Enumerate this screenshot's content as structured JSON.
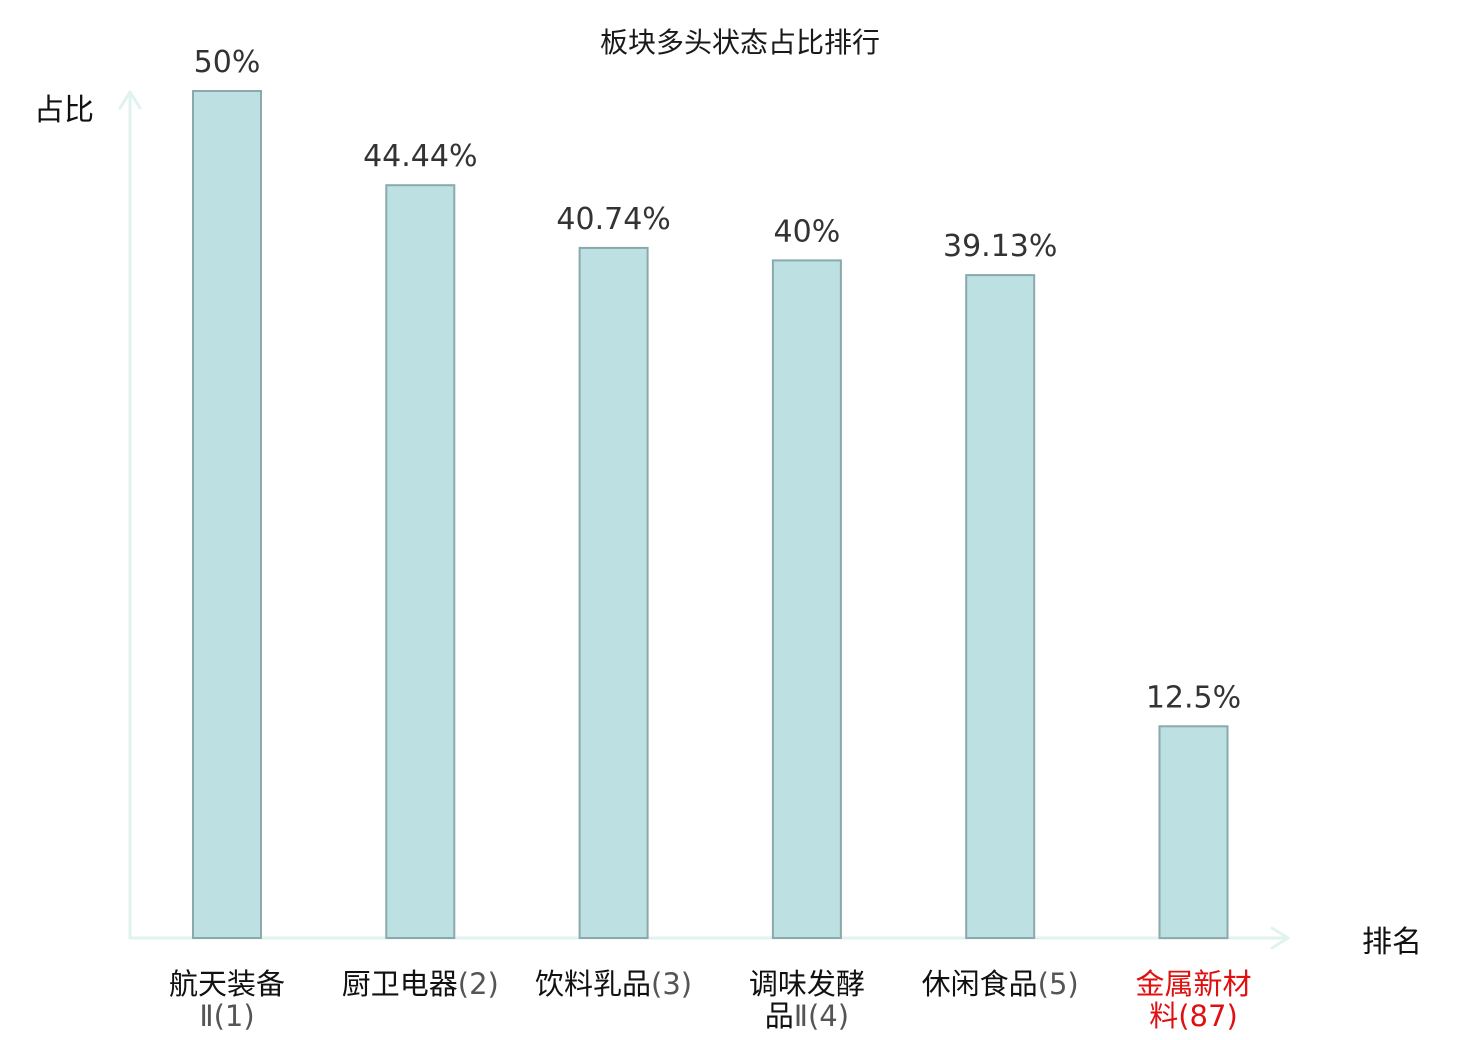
{
  "chart_data": {
    "type": "bar",
    "title": "板块多头状态占比排行",
    "ylabel": "占比",
    "xlabel": "排名",
    "ylim": [
      0,
      50
    ],
    "grid": false,
    "categories": [
      {
        "name_lines": [
          "航天装备"
        ],
        "rank_line_prefix": "",
        "rank": "Ⅱ(1)",
        "highlight": false
      },
      {
        "name_lines": [],
        "rank_line_prefix": "厨卫电器",
        "rank": "(2)",
        "highlight": false
      },
      {
        "name_lines": [],
        "rank_line_prefix": "饮料乳品",
        "rank": "(3)",
        "highlight": false
      },
      {
        "name_lines": [
          "调味发酵"
        ],
        "rank_line_prefix": "品",
        "rank": "Ⅱ(4)",
        "highlight": false
      },
      {
        "name_lines": [],
        "rank_line_prefix": "休闲食品",
        "rank": "(5)",
        "highlight": false
      },
      {
        "name_lines": [
          "金属新材"
        ],
        "rank_line_prefix": "料",
        "rank": "(87)",
        "highlight": true
      }
    ],
    "values": [
      50,
      44.44,
      40.74,
      40,
      39.13,
      12.5
    ],
    "value_labels": [
      "50%",
      "44.44%",
      "40.74%",
      "40%",
      "39.13%",
      "12.5%"
    ],
    "colors": {
      "bar_fill": "#bde0e3",
      "bar_stroke": "#8aa9ab",
      "axis": "#e0f3ef",
      "highlight_text": "#e01010"
    }
  }
}
